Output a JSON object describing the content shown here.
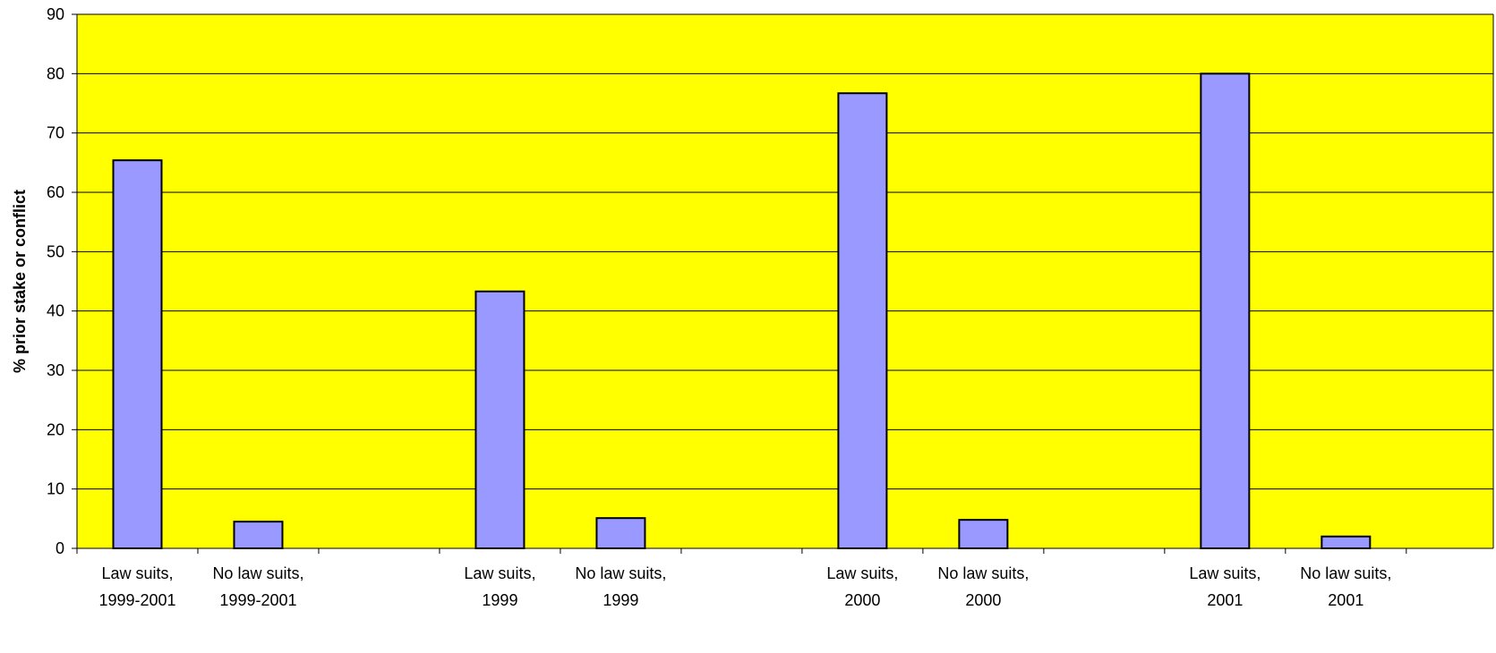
{
  "chart_data": {
    "type": "bar",
    "title": "",
    "xlabel": "",
    "ylabel": "% prior stake or conflict",
    "ylim": [
      0,
      90
    ],
    "yticks": [
      0,
      10,
      20,
      30,
      40,
      50,
      60,
      70,
      80,
      90
    ],
    "grid": true,
    "legend": "none",
    "categories": [
      [
        "Law suits,",
        "1999-2001"
      ],
      [
        "No law suits,",
        "1999-2001"
      ],
      [
        "",
        ""
      ],
      [
        "Law suits,",
        "1999"
      ],
      [
        "No law suits,",
        "1999"
      ],
      [
        "",
        ""
      ],
      [
        "Law suits,",
        "2000"
      ],
      [
        "No law suits,",
        "2000"
      ],
      [
        "",
        ""
      ],
      [
        "Law suits,",
        "2001"
      ],
      [
        "No law suits,",
        "2001"
      ]
    ],
    "values": [
      65.4,
      4.5,
      null,
      43.3,
      5.1,
      null,
      76.7,
      4.8,
      null,
      80.0,
      2.0
    ],
    "colors": {
      "plot_background": "#FFFF00",
      "bar_fill": "#9999FF",
      "bar_stroke": "#000000",
      "gridline": "#000000"
    }
  }
}
